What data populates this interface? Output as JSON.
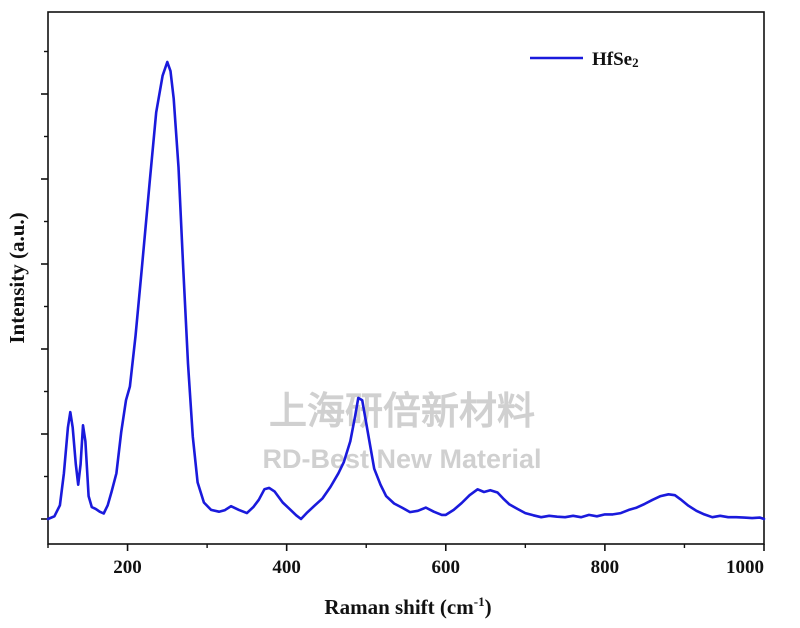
{
  "chart_data": {
    "type": "line",
    "xlabel": "Raman shift (cm",
    "xlabel_sup": "-1",
    "xlabel_close": ")",
    "ylabel": "Intensity (a.u.)",
    "xlim": [
      100,
      1000
    ],
    "ylim": [
      0,
      100
    ],
    "x_ticks": [
      "200",
      "400",
      "600",
      "800",
      "1000"
    ],
    "legend": {
      "placement": "top-right"
    },
    "series": [
      {
        "name": "HfSe",
        "name_sub": "2",
        "color": "#1a1adc",
        "points": [
          [
            100,
            0
          ],
          [
            108,
            0.6
          ],
          [
            115,
            3
          ],
          [
            120,
            10
          ],
          [
            125,
            20
          ],
          [
            128,
            23.4
          ],
          [
            131,
            20
          ],
          [
            135,
            12
          ],
          [
            138,
            7.5
          ],
          [
            141,
            12
          ],
          [
            144,
            20.5
          ],
          [
            147,
            17
          ],
          [
            151,
            5
          ],
          [
            155,
            2.6
          ],
          [
            160,
            2.2
          ],
          [
            165,
            1.6
          ],
          [
            170,
            1.2
          ],
          [
            175,
            3
          ],
          [
            180,
            6
          ],
          [
            186,
            10
          ],
          [
            192,
            19
          ],
          [
            198,
            26
          ],
          [
            203,
            29
          ],
          [
            210,
            40
          ],
          [
            218,
            55
          ],
          [
            228,
            74
          ],
          [
            236,
            89
          ],
          [
            244,
            97
          ],
          [
            250,
            100
          ],
          [
            254,
            98
          ],
          [
            258,
            92
          ],
          [
            264,
            77
          ],
          [
            270,
            55
          ],
          [
            276,
            34
          ],
          [
            282,
            18
          ],
          [
            288,
            8
          ],
          [
            296,
            3.6
          ],
          [
            305,
            2
          ],
          [
            315,
            1.6
          ],
          [
            322,
            1.9
          ],
          [
            330,
            2.8
          ],
          [
            340,
            2
          ],
          [
            350,
            1.3
          ],
          [
            358,
            2.6
          ],
          [
            365,
            4.2
          ],
          [
            372,
            6.5
          ],
          [
            378,
            6.8
          ],
          [
            385,
            6
          ],
          [
            395,
            3.6
          ],
          [
            405,
            2
          ],
          [
            412,
            0.8
          ],
          [
            418,
            0
          ],
          [
            425,
            1.3
          ],
          [
            435,
            2.9
          ],
          [
            445,
            4.5
          ],
          [
            455,
            7
          ],
          [
            465,
            10
          ],
          [
            472,
            12.5
          ],
          [
            480,
            17
          ],
          [
            486,
            22.5
          ],
          [
            490,
            26.5
          ],
          [
            495,
            26
          ],
          [
            500,
            21
          ],
          [
            505,
            16
          ],
          [
            510,
            11
          ],
          [
            518,
            7.5
          ],
          [
            525,
            5
          ],
          [
            535,
            3.4
          ],
          [
            545,
            2.5
          ],
          [
            555,
            1.5
          ],
          [
            565,
            1.8
          ],
          [
            575,
            2.5
          ],
          [
            585,
            1.6
          ],
          [
            595,
            0.9
          ],
          [
            600,
            0.9
          ],
          [
            610,
            2
          ],
          [
            620,
            3.5
          ],
          [
            630,
            5.2
          ],
          [
            640,
            6.5
          ],
          [
            648,
            5.9
          ],
          [
            656,
            6.3
          ],
          [
            665,
            5.8
          ],
          [
            672,
            4.5
          ],
          [
            680,
            3.2
          ],
          [
            690,
            2.2
          ],
          [
            700,
            1.3
          ],
          [
            710,
            0.8
          ],
          [
            720,
            0.4
          ],
          [
            730,
            0.7
          ],
          [
            740,
            0.5
          ],
          [
            750,
            0.4
          ],
          [
            760,
            0.7
          ],
          [
            770,
            0.4
          ],
          [
            780,
            0.9
          ],
          [
            790,
            0.6
          ],
          [
            800,
            1
          ],
          [
            810,
            1
          ],
          [
            820,
            1.3
          ],
          [
            830,
            2
          ],
          [
            840,
            2.5
          ],
          [
            850,
            3.3
          ],
          [
            860,
            4.2
          ],
          [
            870,
            5
          ],
          [
            880,
            5.4
          ],
          [
            888,
            5.2
          ],
          [
            895,
            4.3
          ],
          [
            905,
            2.9
          ],
          [
            915,
            1.8
          ],
          [
            925,
            1
          ],
          [
            935,
            0.4
          ],
          [
            945,
            0.7
          ],
          [
            955,
            0.4
          ],
          [
            965,
            0.4
          ],
          [
            975,
            0.3
          ],
          [
            985,
            0.2
          ],
          [
            995,
            0.3
          ],
          [
            1000,
            0
          ]
        ]
      }
    ]
  },
  "watermark": {
    "line1": "上海研倍新材料",
    "line2": "RD-Best New Material"
  }
}
